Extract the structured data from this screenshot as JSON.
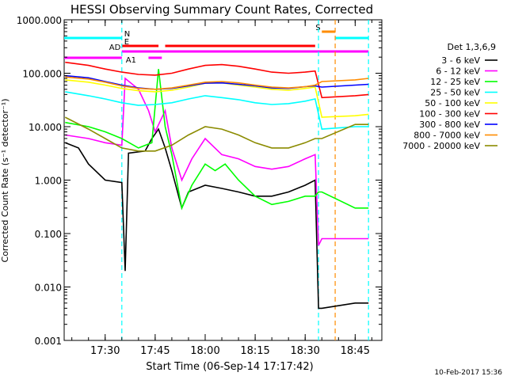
{
  "chart_data": {
    "type": "line",
    "title": "HESSI Observing Summary Count Rates, Corrected",
    "xlabel": "Start Time (06-Sep-14 17:17:42)",
    "ylabel": "Corrected Count Rate (s⁻¹ detector⁻¹)",
    "y_scale": "log",
    "ylim": [
      0.001,
      1000
    ],
    "xlim": [
      "17:17:42",
      "18:53:00"
    ],
    "x_ticks": [
      "17:30",
      "17:45",
      "18:00",
      "18:15",
      "18:30",
      "18:45"
    ],
    "y_ticks": [
      "1000.000",
      "100.000",
      "10.000",
      "1.000",
      "0.100",
      "0.010",
      "0.001"
    ],
    "legend_title": "Det 1,3,6,9",
    "legend_position": "right",
    "series": [
      {
        "name": "3 - 6 keV",
        "color": "#000000",
        "points": [
          [
            "17:18",
            5.0
          ],
          [
            "17:22",
            4.0
          ],
          [
            "17:25",
            2.0
          ],
          [
            "17:30",
            1.0
          ],
          [
            "17:35",
            0.9
          ],
          [
            "17:36",
            0.02
          ],
          [
            "17:37",
            3.2
          ],
          [
            "17:42",
            3.5
          ],
          [
            "17:44",
            6.0
          ],
          [
            "17:46",
            9.0
          ],
          [
            "17:48",
            4.0
          ],
          [
            "17:50",
            1.5
          ],
          [
            "17:53",
            0.3
          ],
          [
            "17:55",
            0.6
          ],
          [
            "18:00",
            0.8
          ],
          [
            "18:05",
            0.7
          ],
          [
            "18:10",
            0.6
          ],
          [
            "18:15",
            0.5
          ],
          [
            "18:20",
            0.5
          ],
          [
            "18:25",
            0.6
          ],
          [
            "18:30",
            0.8
          ],
          [
            "18:33",
            1.0
          ],
          [
            "18:34",
            0.004
          ],
          [
            "18:35",
            0.004
          ],
          [
            "18:45",
            0.005
          ],
          [
            "18:49",
            0.005
          ]
        ]
      },
      {
        "name": "6 - 12 keV",
        "color": "#ff00ff",
        "points": [
          [
            "17:18",
            7.0
          ],
          [
            "17:25",
            6.0
          ],
          [
            "17:30",
            5.0
          ],
          [
            "17:35",
            4.5
          ],
          [
            "17:36",
            80.0
          ],
          [
            "17:40",
            50.0
          ],
          [
            "17:43",
            20.0
          ],
          [
            "17:45",
            8.0
          ],
          [
            "17:48",
            20.0
          ],
          [
            "17:50",
            4.0
          ],
          [
            "17:53",
            1.0
          ],
          [
            "17:56",
            2.5
          ],
          [
            "18:00",
            6.0
          ],
          [
            "18:05",
            3.0
          ],
          [
            "18:10",
            2.5
          ],
          [
            "18:15",
            1.8
          ],
          [
            "18:20",
            1.6
          ],
          [
            "18:25",
            1.8
          ],
          [
            "18:30",
            2.5
          ],
          [
            "18:33",
            3.0
          ],
          [
            "18:34",
            0.06
          ],
          [
            "18:35",
            0.08
          ],
          [
            "18:45",
            0.08
          ],
          [
            "18:49",
            0.08
          ]
        ]
      },
      {
        "name": "12 - 25 keV",
        "color": "#00ff00",
        "points": [
          [
            "17:18",
            12.0
          ],
          [
            "17:25",
            10.0
          ],
          [
            "17:30",
            8.0
          ],
          [
            "17:35",
            6.0
          ],
          [
            "17:40",
            4.0
          ],
          [
            "17:44",
            5.0
          ],
          [
            "17:46",
            120.0
          ],
          [
            "17:48",
            10.0
          ],
          [
            "17:50",
            3.0
          ],
          [
            "17:53",
            0.3
          ],
          [
            "17:56",
            0.8
          ],
          [
            "18:00",
            2.0
          ],
          [
            "18:03",
            1.5
          ],
          [
            "18:06",
            2.0
          ],
          [
            "18:10",
            1.0
          ],
          [
            "18:15",
            0.5
          ],
          [
            "18:20",
            0.35
          ],
          [
            "18:25",
            0.4
          ],
          [
            "18:30",
            0.5
          ],
          [
            "18:33",
            0.5
          ],
          [
            "18:34",
            0.6
          ],
          [
            "18:35",
            0.6
          ],
          [
            "18:45",
            0.3
          ],
          [
            "18:49",
            0.3
          ]
        ]
      },
      {
        "name": "25 - 50 keV",
        "color": "#00ffff",
        "points": [
          [
            "17:18",
            45.0
          ],
          [
            "17:25",
            38.0
          ],
          [
            "17:30",
            33.0
          ],
          [
            "17:35",
            28.0
          ],
          [
            "17:40",
            25.0
          ],
          [
            "17:45",
            26.0
          ],
          [
            "17:50",
            28.0
          ],
          [
            "17:55",
            33.0
          ],
          [
            "18:00",
            38.0
          ],
          [
            "18:05",
            35.0
          ],
          [
            "18:10",
            32.0
          ],
          [
            "18:15",
            28.0
          ],
          [
            "18:20",
            26.0
          ],
          [
            "18:25",
            27.0
          ],
          [
            "18:30",
            30.0
          ],
          [
            "18:33",
            33.0
          ],
          [
            "18:35",
            9.0
          ],
          [
            "18:45",
            10.0
          ],
          [
            "18:49",
            10.0
          ]
        ]
      },
      {
        "name": "50 - 100 keV",
        "color": "#ffff00",
        "points": [
          [
            "17:18",
            75.0
          ],
          [
            "17:25",
            68.0
          ],
          [
            "17:30",
            60.0
          ],
          [
            "17:35",
            52.0
          ],
          [
            "17:40",
            47.0
          ],
          [
            "17:45",
            45.0
          ],
          [
            "17:50",
            48.0
          ],
          [
            "17:55",
            55.0
          ],
          [
            "18:00",
            65.0
          ],
          [
            "18:05",
            66.0
          ],
          [
            "18:10",
            60.0
          ],
          [
            "18:15",
            55.0
          ],
          [
            "18:20",
            50.0
          ],
          [
            "18:25",
            48.0
          ],
          [
            "18:30",
            52.0
          ],
          [
            "18:33",
            55.0
          ],
          [
            "18:35",
            15.0
          ],
          [
            "18:45",
            16.0
          ],
          [
            "18:49",
            17.0
          ]
        ]
      },
      {
        "name": "100 - 300 keV",
        "color": "#ff0000",
        "points": [
          [
            "17:18",
            160.0
          ],
          [
            "17:25",
            140.0
          ],
          [
            "17:30",
            120.0
          ],
          [
            "17:35",
            105.0
          ],
          [
            "17:40",
            95.0
          ],
          [
            "17:45",
            92.0
          ],
          [
            "17:50",
            100.0
          ],
          [
            "17:55",
            120.0
          ],
          [
            "18:00",
            140.0
          ],
          [
            "18:05",
            145.0
          ],
          [
            "18:10",
            135.0
          ],
          [
            "18:15",
            120.0
          ],
          [
            "18:20",
            105.0
          ],
          [
            "18:25",
            100.0
          ],
          [
            "18:30",
            105.0
          ],
          [
            "18:33",
            110.0
          ],
          [
            "18:35",
            35.0
          ],
          [
            "18:45",
            38.0
          ],
          [
            "18:49",
            40.0
          ]
        ]
      },
      {
        "name": "300 - 800 keV",
        "color": "#0000ff",
        "points": [
          [
            "17:18",
            90.0
          ],
          [
            "17:25",
            82.0
          ],
          [
            "17:30",
            70.0
          ],
          [
            "17:35",
            60.0
          ],
          [
            "17:40",
            53.0
          ],
          [
            "17:45",
            50.0
          ],
          [
            "17:50",
            52.0
          ],
          [
            "17:55",
            58.0
          ],
          [
            "18:00",
            65.0
          ],
          [
            "18:05",
            66.0
          ],
          [
            "18:10",
            62.0
          ],
          [
            "18:15",
            58.0
          ],
          [
            "18:20",
            53.0
          ],
          [
            "18:25",
            52.0
          ],
          [
            "18:30",
            56.0
          ],
          [
            "18:33",
            58.0
          ],
          [
            "18:35",
            55.0
          ],
          [
            "18:45",
            60.0
          ],
          [
            "18:49",
            62.0
          ]
        ]
      },
      {
        "name": "800 - 7000 keV",
        "color": "#ff8c00",
        "points": [
          [
            "17:18",
            85.0
          ],
          [
            "17:25",
            78.0
          ],
          [
            "17:30",
            68.0
          ],
          [
            "17:35",
            58.0
          ],
          [
            "17:40",
            52.0
          ],
          [
            "17:45",
            50.0
          ],
          [
            "17:50",
            53.0
          ],
          [
            "17:55",
            60.0
          ],
          [
            "18:00",
            68.0
          ],
          [
            "18:05",
            70.0
          ],
          [
            "18:10",
            66.0
          ],
          [
            "18:15",
            60.0
          ],
          [
            "18:20",
            55.0
          ],
          [
            "18:25",
            53.0
          ],
          [
            "18:30",
            56.0
          ],
          [
            "18:33",
            60.0
          ],
          [
            "18:35",
            70.0
          ],
          [
            "18:45",
            75.0
          ],
          [
            "18:49",
            80.0
          ]
        ]
      },
      {
        "name": "7000 - 20000 keV",
        "color": "#8b8b00",
        "points": [
          [
            "17:18",
            15.0
          ],
          [
            "17:25",
            9.0
          ],
          [
            "17:30",
            6.0
          ],
          [
            "17:35",
            4.0
          ],
          [
            "17:40",
            3.5
          ],
          [
            "17:45",
            3.5
          ],
          [
            "17:50",
            4.5
          ],
          [
            "17:55",
            7.0
          ],
          [
            "18:00",
            10.0
          ],
          [
            "18:05",
            9.0
          ],
          [
            "18:10",
            7.0
          ],
          [
            "18:15",
            5.0
          ],
          [
            "18:20",
            4.0
          ],
          [
            "18:25",
            4.0
          ],
          [
            "18:30",
            5.0
          ],
          [
            "18:33",
            6.0
          ],
          [
            "18:35",
            6.0
          ],
          [
            "18:45",
            11.0
          ],
          [
            "18:49",
            11.0
          ]
        ]
      }
    ],
    "flag_bars": [
      {
        "label": "N",
        "color": "#00ffff",
        "segments": [
          [
            "17:17:42",
            "17:35"
          ],
          [
            "18:39",
            "18:49"
          ]
        ]
      },
      {
        "label": "E",
        "color": "#ff0000",
        "segments": [
          [
            "17:35",
            "17:46"
          ],
          [
            "17:48",
            "18:33"
          ]
        ]
      },
      {
        "label": "AD",
        "color": "#ff00ff",
        "segments": [
          [
            "17:35",
            "18:49"
          ]
        ]
      },
      {
        "label": "A1",
        "color": "#ff00ff",
        "segments": [
          [
            "17:17:42",
            "17:35"
          ],
          [
            "17:43",
            "17:47"
          ]
        ]
      },
      {
        "label": "S",
        "color": "#ff8c00",
        "segments": [
          [
            "18:35",
            "18:39"
          ]
        ]
      }
    ],
    "vertical_markers": [
      {
        "time": "17:35",
        "color": "#00ffff"
      },
      {
        "time": "18:34",
        "color": "#00ffff"
      },
      {
        "time": "18:39",
        "color": "#ff8c00"
      },
      {
        "time": "18:49",
        "color": "#00ffff"
      }
    ]
  },
  "timestamp": "10-Feb-2017 15:36"
}
